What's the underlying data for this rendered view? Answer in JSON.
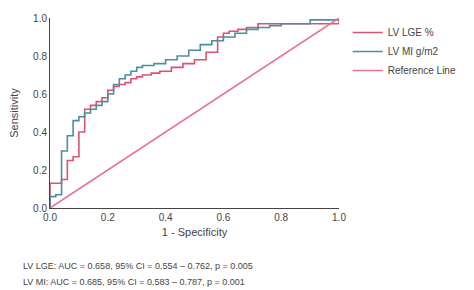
{
  "chart_data": {
    "type": "line",
    "xlabel": "1 - Specificity",
    "ylabel": "Sensitivity",
    "xlim": [
      0.0,
      1.0
    ],
    "ylim": [
      0.0,
      1.0
    ],
    "xticks": [
      {
        "value": 0.0,
        "label": "0.0"
      },
      0.2,
      0.4,
      0.6,
      0.8,
      {
        "value": 1.0,
        "label": "1.0"
      }
    ],
    "yticks": [
      {
        "value": 0.0,
        "label": "0.0"
      },
      0.2,
      0.4,
      0.6,
      0.8,
      {
        "value": 1.0,
        "label": "1.0"
      }
    ],
    "grid": false,
    "legend": "right",
    "series": [
      {
        "name": "LV LGE %",
        "type": "step",
        "color": "#e05070",
        "x": [
          0.0,
          0.0,
          0.02,
          0.04,
          0.06,
          0.08,
          0.1,
          0.1,
          0.12,
          0.14,
          0.16,
          0.18,
          0.2,
          0.22,
          0.24,
          0.26,
          0.28,
          0.3,
          0.32,
          0.35,
          0.38,
          0.42,
          0.46,
          0.5,
          0.54,
          0.58,
          0.6,
          0.62,
          0.65,
          0.68,
          0.72,
          1.0
        ],
        "values": [
          0.0,
          0.13,
          0.13,
          0.15,
          0.25,
          0.27,
          0.38,
          0.4,
          0.52,
          0.54,
          0.56,
          0.58,
          0.62,
          0.64,
          0.65,
          0.66,
          0.68,
          0.69,
          0.7,
          0.71,
          0.72,
          0.74,
          0.76,
          0.78,
          0.82,
          0.9,
          0.92,
          0.93,
          0.94,
          0.95,
          0.97,
          1.0
        ]
      },
      {
        "name": "LV MI g/m2",
        "type": "step",
        "color": "#4a8fa0",
        "x": [
          0.0,
          0.0,
          0.02,
          0.04,
          0.06,
          0.08,
          0.1,
          0.12,
          0.14,
          0.16,
          0.18,
          0.2,
          0.22,
          0.24,
          0.26,
          0.28,
          0.3,
          0.32,
          0.36,
          0.4,
          0.44,
          0.48,
          0.52,
          0.56,
          0.6,
          0.64,
          0.68,
          0.72,
          0.76,
          0.8,
          0.9,
          1.0
        ],
        "values": [
          0.0,
          0.06,
          0.07,
          0.3,
          0.38,
          0.46,
          0.48,
          0.5,
          0.52,
          0.54,
          0.56,
          0.6,
          0.65,
          0.68,
          0.7,
          0.72,
          0.74,
          0.75,
          0.76,
          0.78,
          0.8,
          0.83,
          0.86,
          0.88,
          0.9,
          0.92,
          0.94,
          0.95,
          0.96,
          0.97,
          0.99,
          1.0
        ]
      },
      {
        "name": "Reference Line",
        "type": "line",
        "color": "#e87090",
        "x": [
          0,
          1
        ],
        "values": [
          0,
          1
        ]
      }
    ],
    "annotations": [
      "LV LGE: AUC = 0.658, 95% CI = 0.554 – 0.762, p = 0.005",
      "LV MI: AUC = 0.685, 95% CI = 0.583 – 0.787, p = 0.001"
    ]
  }
}
